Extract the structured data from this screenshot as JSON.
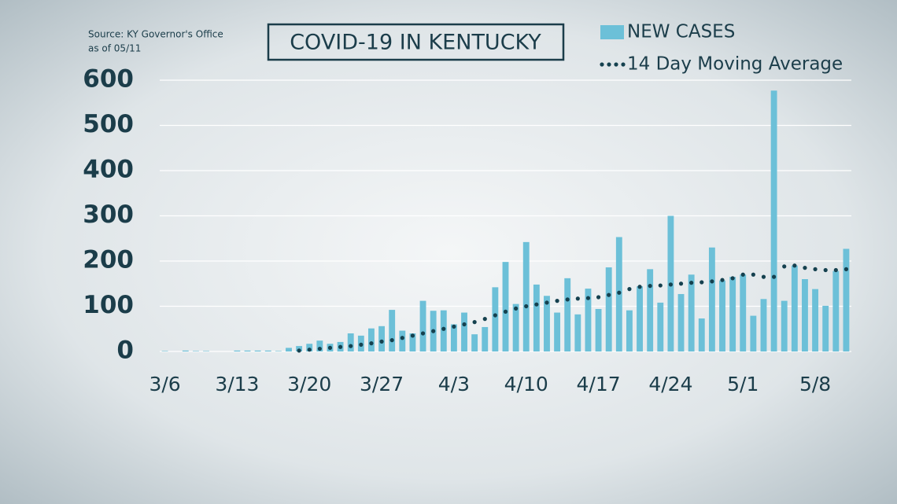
{
  "chart_data": {
    "type": "bar",
    "title": "COVID-19 IN KENTUCKY",
    "source": "Source: KY Governor's Office",
    "as_of": "as of 05/11",
    "categories": [
      "3/6",
      null,
      null,
      null,
      null,
      null,
      null,
      "3/13",
      null,
      null,
      null,
      null,
      null,
      null,
      "3/20",
      null,
      null,
      null,
      null,
      null,
      null,
      "3/27",
      null,
      null,
      null,
      null,
      null,
      null,
      "4/3",
      null,
      null,
      null,
      null,
      null,
      null,
      "4/10",
      null,
      null,
      null,
      null,
      null,
      null,
      "4/17",
      null,
      null,
      null,
      null,
      null,
      null,
      "4/24",
      null,
      null,
      null,
      null,
      null,
      null,
      "5/1",
      null,
      null,
      null,
      null,
      null,
      null,
      "5/8",
      null,
      null,
      null
    ],
    "series": [
      {
        "name": "NEW CASES",
        "color": "#6cc0d8",
        "kind": "bar",
        "values": [
          1,
          0,
          2,
          1,
          1,
          0,
          0,
          2,
          2,
          2,
          2,
          1,
          8,
          12,
          17,
          24,
          17,
          21,
          40,
          35,
          51,
          56,
          92,
          46,
          40,
          112,
          90,
          91,
          60,
          86,
          38,
          54,
          142,
          198,
          105,
          242,
          148,
          123,
          86,
          162,
          82,
          139,
          94,
          186,
          253,
          91,
          144,
          182,
          108,
          300,
          127,
          170,
          73,
          230,
          157,
          165,
          170,
          79,
          116,
          577,
          112,
          190,
          160,
          138,
          101,
          178,
          227
        ]
      },
      {
        "name": "14 Day Moving Average",
        "color": "#15414f",
        "kind": "dots",
        "values": [
          null,
          null,
          null,
          null,
          null,
          null,
          null,
          null,
          null,
          null,
          null,
          null,
          null,
          2,
          4,
          6,
          8,
          10,
          12,
          15,
          18,
          22,
          25,
          30,
          35,
          40,
          45,
          50,
          55,
          60,
          65,
          72,
          80,
          88,
          95,
          100,
          104,
          108,
          112,
          115,
          117,
          118,
          120,
          125,
          130,
          138,
          143,
          145,
          146,
          148,
          150,
          152,
          153,
          155,
          158,
          162,
          170,
          170,
          165,
          165,
          188,
          190,
          185,
          182,
          180,
          180,
          182
        ]
      }
    ],
    "ylim": [
      0,
      600
    ],
    "yticks": [
      0,
      100,
      200,
      300,
      400,
      500,
      600
    ],
    "grid": true
  }
}
